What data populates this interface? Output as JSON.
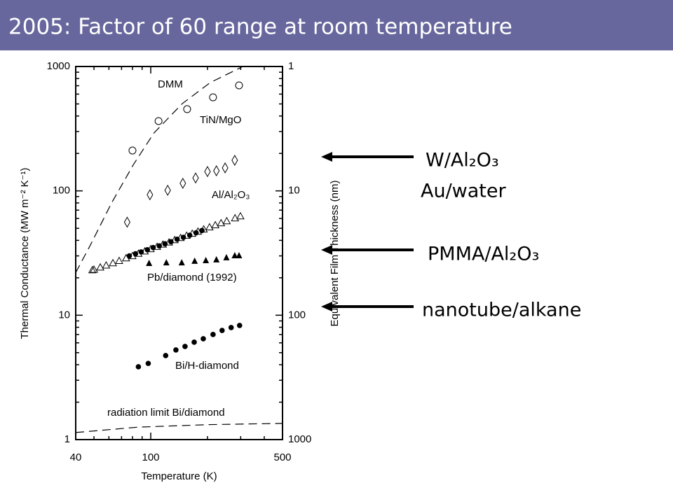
{
  "header": {
    "title": "2005: Factor of 60 range at room temperature"
  },
  "chart_data": {
    "type": "scatter",
    "xlabel": "Temperature (K)",
    "ylabel": "Thermal Conductance (MW m⁻² K⁻¹)",
    "y2label": "Equivalent Film Thickness (nm)",
    "xscale": "log",
    "yscale": "log",
    "xlim": [
      40,
      500
    ],
    "ylim": [
      1,
      1000
    ],
    "y2lim": [
      1000,
      1
    ],
    "xticks": [
      40,
      100,
      500
    ],
    "yticks": [
      1,
      10,
      100,
      1000
    ],
    "y2ticks": [
      1,
      10,
      100,
      1000
    ],
    "xminorticks": [
      50,
      60,
      70,
      80,
      90,
      200,
      300,
      400
    ],
    "yminorticks": [
      2,
      3,
      4,
      5,
      6,
      7,
      8,
      9,
      20,
      30,
      40,
      50,
      60,
      70,
      80,
      90,
      200,
      300,
      400,
      500,
      600,
      700,
      800,
      900
    ],
    "series": [
      {
        "name": "DMM",
        "marker": "dashed-line",
        "color": "#000000",
        "x": [
          40,
          48,
          62,
          81,
          104,
          147,
          207,
          304
        ],
        "values": [
          22,
          37,
          80,
          163,
          292,
          503,
          743,
          990
        ]
      },
      {
        "name": "TiN/MgO",
        "marker": "circle-open",
        "color": "#000000",
        "x": [
          80,
          110,
          156,
          214,
          294
        ],
        "values": [
          211,
          364,
          454,
          565,
          705
        ]
      },
      {
        "name": "Al/Al₂O₃",
        "marker": "diamond-open",
        "color": "#000000",
        "x": [
          75,
          99,
          123,
          148,
          173,
          200,
          223,
          248,
          279
        ],
        "values": [
          56,
          93,
          101,
          115,
          127,
          143,
          145,
          153,
          176
        ]
      },
      {
        "marker": "triangle-open",
        "color": "#000000",
        "x": [
          49,
          50,
          54,
          58,
          63,
          68,
          74,
          80,
          86,
          93,
          100,
          108,
          116,
          125,
          134,
          144,
          155,
          166,
          178,
          191,
          205,
          220,
          236,
          253,
          280,
          299
        ],
        "values": [
          23.1,
          23.3,
          24.3,
          25.2,
          26.3,
          27.4,
          28.8,
          30.0,
          31.3,
          32.7,
          34.1,
          35.6,
          37.1,
          38.6,
          40.3,
          41.9,
          43.7,
          45.4,
          47.2,
          49.1,
          51.1,
          53.1,
          55.1,
          57.2,
          60.4,
          62.6
        ]
      },
      {
        "marker": "circle-filled",
        "color": "#000000",
        "x": [
          77,
          83,
          89,
          96,
          103,
          111,
          119,
          128,
          138,
          149,
          161,
          174,
          187
        ],
        "values": [
          30,
          31.2,
          32.3,
          33.6,
          35,
          36.1,
          37.5,
          39,
          40.8,
          42.3,
          44,
          46,
          48
        ]
      },
      {
        "name": "Pb/diamond (1992)",
        "marker": "triangle-filled",
        "color": "#000000",
        "x": [
          98,
          121,
          146,
          171,
          196,
          223,
          252,
          279,
          294
        ],
        "values": [
          26.2,
          26.5,
          26.5,
          27.3,
          27.6,
          28.0,
          29.1,
          30.2,
          30.2
        ]
      },
      {
        "name": "Bi/H-diamond",
        "marker": "circle-filled",
        "color": "#000000",
        "x": [
          86,
          97,
          120,
          136,
          152,
          170,
          190,
          214,
          239,
          267,
          296
        ],
        "values": [
          3.85,
          4.1,
          4.74,
          5.26,
          5.61,
          6.07,
          6.47,
          7.0,
          7.55,
          7.96,
          8.28
        ]
      },
      {
        "name": "radiation limit Bi/diamond",
        "marker": "dashed-line",
        "color": "#000000",
        "x": [
          40,
          86,
          207,
          500
        ],
        "values": [
          1.14,
          1.26,
          1.32,
          1.35
        ]
      }
    ]
  },
  "callouts": [
    {
      "label": "W/Al₂O₃"
    },
    {
      "label": "Au/water"
    },
    {
      "label": "PMMA/Al₂O₃"
    },
    {
      "label": "nanotube/alkane"
    }
  ]
}
